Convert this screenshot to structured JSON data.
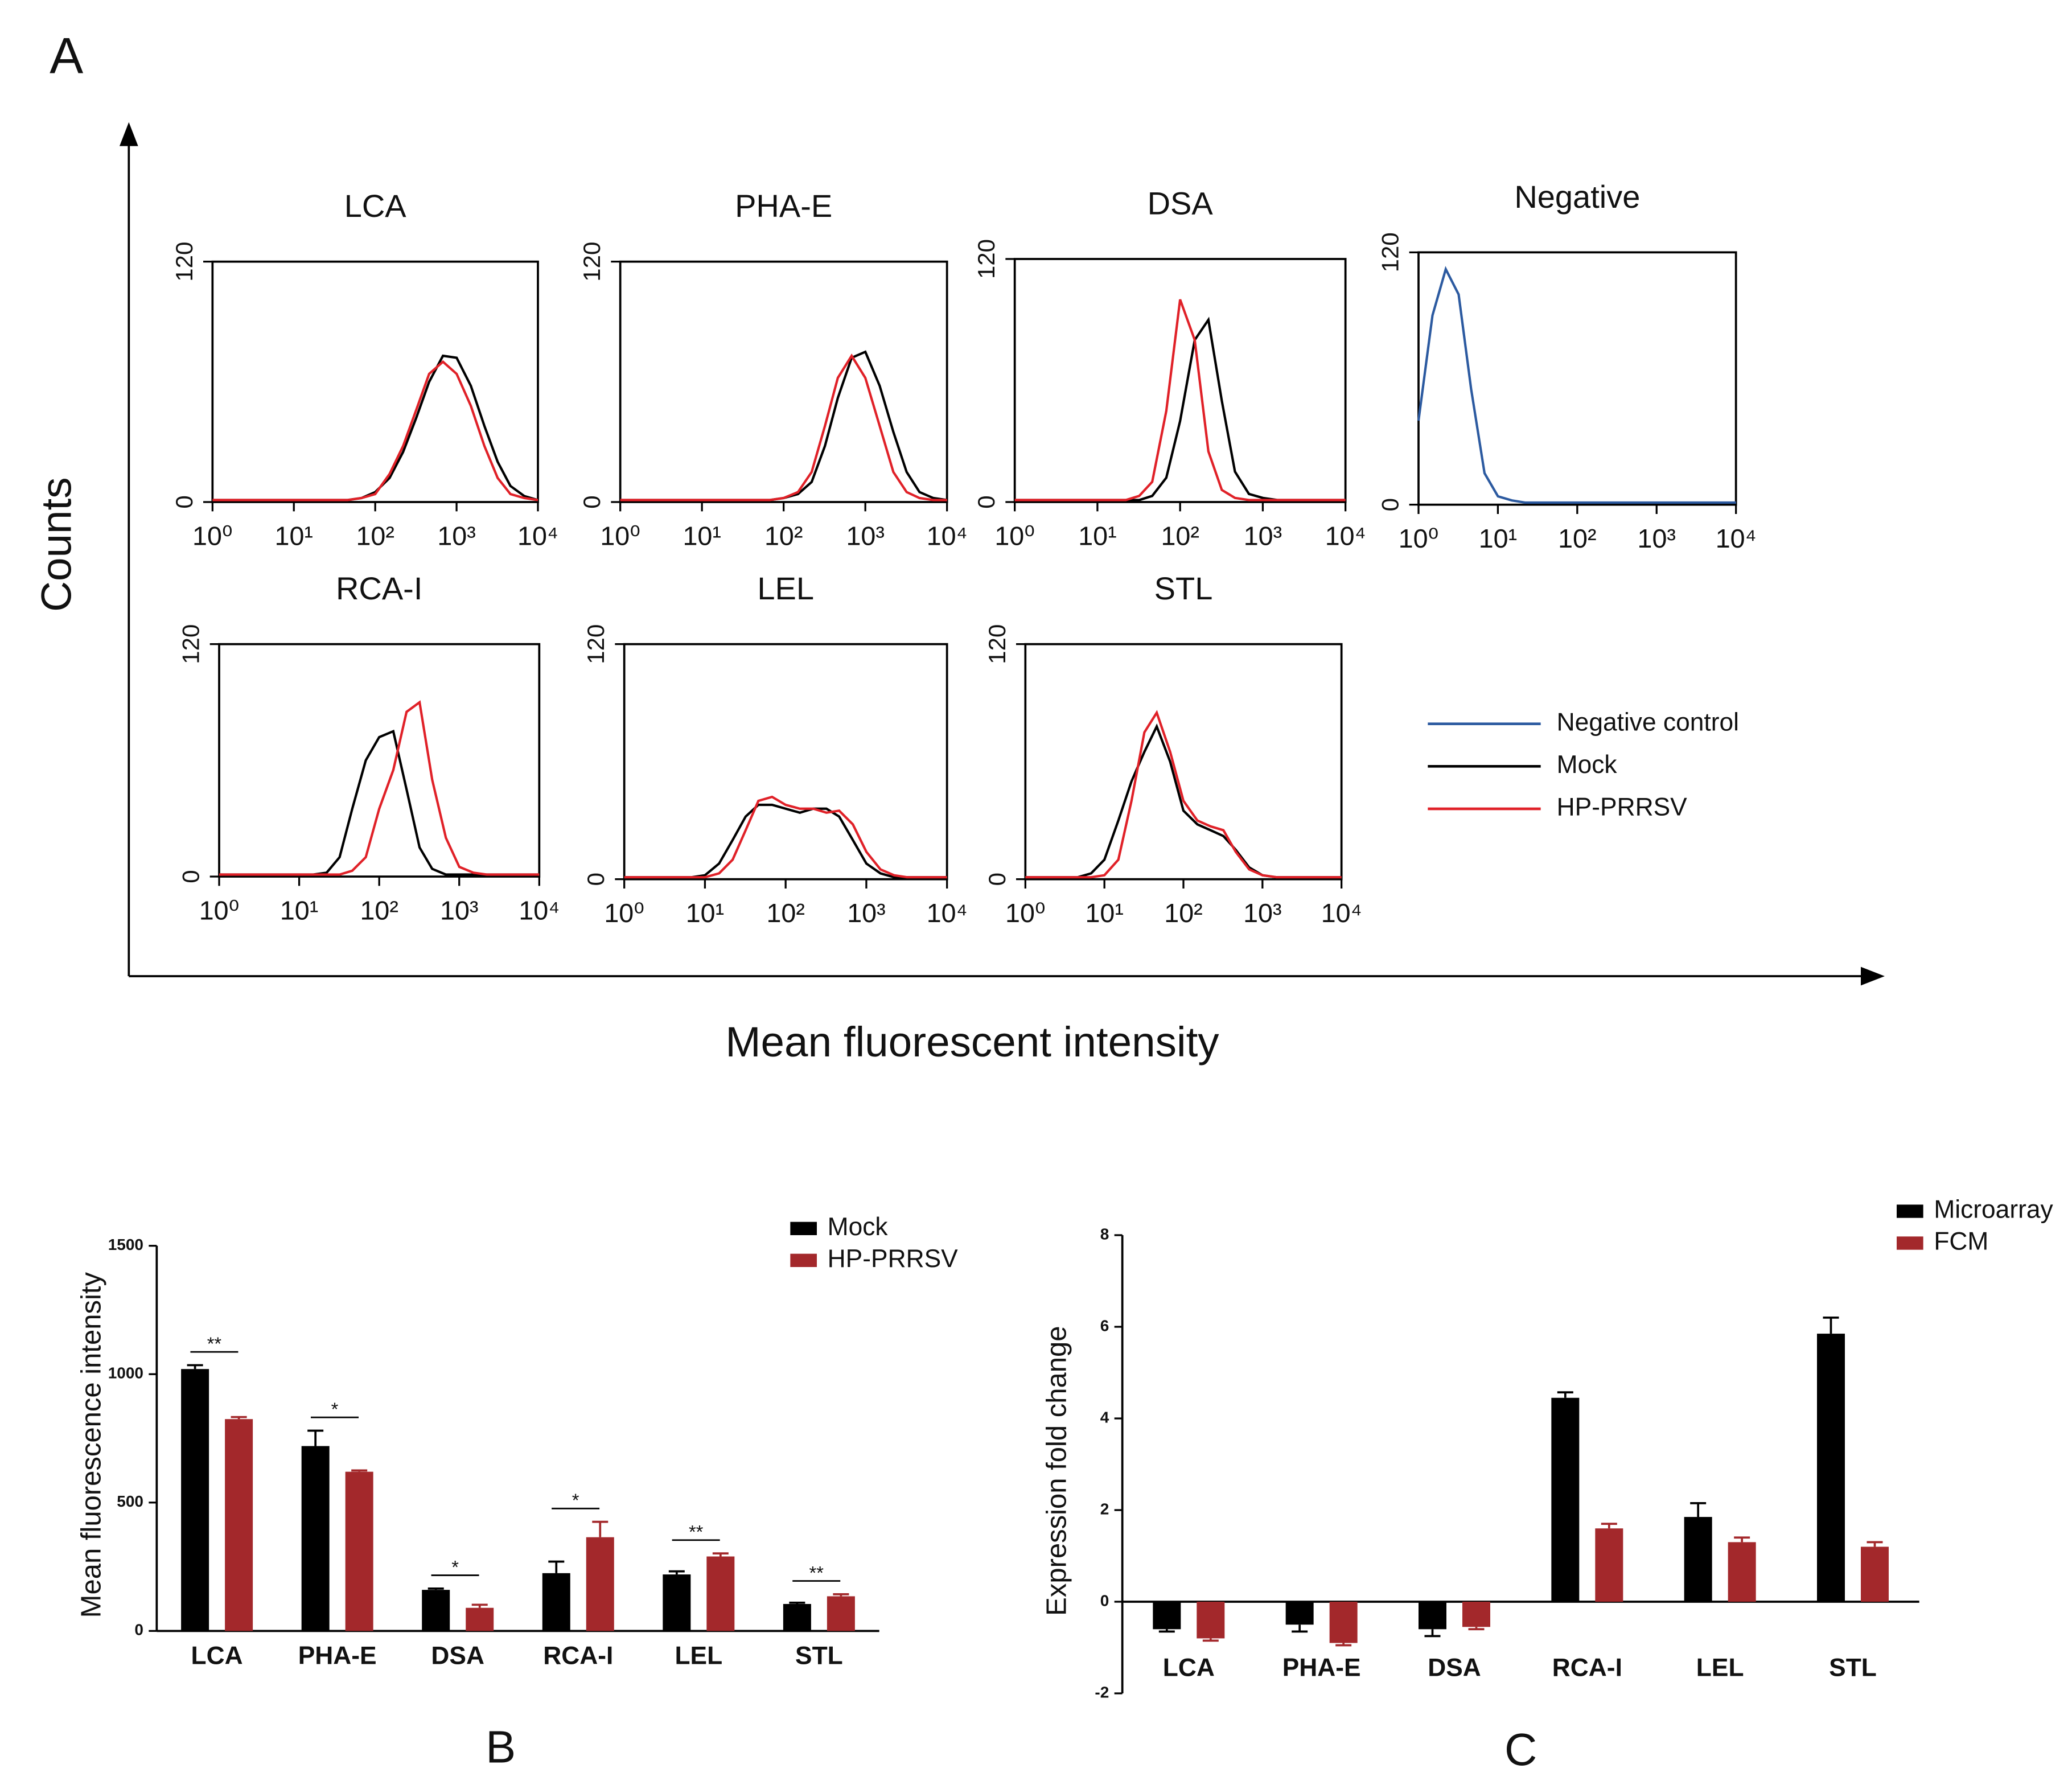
{
  "figure": {
    "panel_labels": [
      "A",
      "B",
      "C"
    ],
    "y_label": "Counts",
    "x_label": "Mean fluorescent intensity"
  },
  "chart_data": [
    {
      "type": "line",
      "title": "LCA",
      "log_x": true,
      "x": [
        1,
        1.5,
        2.2,
        3.2,
        4.6,
        6.8,
        10,
        15,
        22,
        32,
        46,
        68,
        100,
        150,
        220,
        320,
        460,
        680,
        1000,
        1500,
        2200,
        3200,
        4600,
        6800,
        10000
      ],
      "series": [
        {
          "name": "Mock",
          "color": "#000000",
          "values": [
            1,
            1,
            1,
            1,
            1,
            1,
            1,
            1,
            1,
            1,
            1,
            2,
            5,
            12,
            25,
            42,
            60,
            73,
            72,
            58,
            38,
            20,
            8,
            3,
            1
          ]
        },
        {
          "name": "HP-PRRSV",
          "color": "#e02128",
          "values": [
            1,
            1,
            1,
            1,
            1,
            1,
            1,
            1,
            1,
            1,
            1,
            2,
            4,
            14,
            28,
            46,
            64,
            70,
            64,
            48,
            28,
            12,
            4,
            2,
            1
          ]
        }
      ],
      "xlim": [
        1,
        10000
      ],
      "xticks": [
        {
          "value": 1,
          "label": "10⁰"
        },
        {
          "value": 10,
          "label": "10¹"
        },
        {
          "value": 100,
          "label": "10²"
        },
        {
          "value": 1000,
          "label": "10³"
        },
        {
          "value": 10000,
          "label": "10⁴"
        }
      ],
      "ylim": [
        0,
        120
      ],
      "yticks": [
        0,
        120
      ]
    },
    {
      "type": "line",
      "title": "PHA-E",
      "log_x": true,
      "x": [
        1,
        1.5,
        2.2,
        3.2,
        4.6,
        6.8,
        10,
        15,
        22,
        32,
        46,
        68,
        100,
        150,
        220,
        320,
        460,
        680,
        1000,
        1500,
        2200,
        3200,
        4600,
        6800,
        10000
      ],
      "series": [
        {
          "name": "Mock",
          "color": "#000000",
          "values": [
            1,
            1,
            1,
            1,
            1,
            1,
            1,
            1,
            1,
            1,
            1,
            1,
            2,
            4,
            10,
            28,
            52,
            72,
            75,
            58,
            35,
            15,
            5,
            2,
            1
          ]
        },
        {
          "name": "HP-PRRSV",
          "color": "#e02128",
          "values": [
            1,
            1,
            1,
            1,
            1,
            1,
            1,
            1,
            1,
            1,
            1,
            1,
            2,
            5,
            15,
            38,
            62,
            73,
            62,
            38,
            15,
            5,
            2,
            1,
            1
          ]
        }
      ],
      "xlim": [
        1,
        10000
      ],
      "xticks": [
        {
          "value": 1,
          "label": "10⁰"
        },
        {
          "value": 10,
          "label": "10¹"
        },
        {
          "value": 100,
          "label": "10²"
        },
        {
          "value": 1000,
          "label": "10³"
        },
        {
          "value": 10000,
          "label": "10⁴"
        }
      ],
      "ylim": [
        0,
        120
      ],
      "yticks": [
        0,
        120
      ]
    },
    {
      "type": "line",
      "title": "DSA",
      "log_x": true,
      "x": [
        1,
        1.5,
        2.2,
        3.2,
        4.6,
        6.8,
        10,
        15,
        22,
        32,
        46,
        68,
        100,
        150,
        220,
        320,
        460,
        680,
        1000,
        1500,
        2200,
        3200,
        4600,
        6800,
        10000
      ],
      "series": [
        {
          "name": "Mock",
          "color": "#000000",
          "values": [
            1,
            1,
            1,
            1,
            1,
            1,
            1,
            1,
            1,
            1,
            3,
            12,
            40,
            80,
            90,
            50,
            15,
            4,
            2,
            1,
            1,
            1,
            1,
            1,
            1
          ]
        },
        {
          "name": "HP-PRRSV",
          "color": "#e02128",
          "values": [
            1,
            1,
            1,
            1,
            1,
            1,
            1,
            1,
            1,
            3,
            10,
            45,
            100,
            80,
            25,
            6,
            2,
            1,
            1,
            1,
            1,
            1,
            1,
            1,
            1
          ]
        }
      ],
      "xlim": [
        1,
        10000
      ],
      "xticks": [
        {
          "value": 1,
          "label": "10⁰"
        },
        {
          "value": 10,
          "label": "10¹"
        },
        {
          "value": 100,
          "label": "10²"
        },
        {
          "value": 1000,
          "label": "10³"
        },
        {
          "value": 10000,
          "label": "10⁴"
        }
      ],
      "ylim": [
        0,
        120
      ],
      "yticks": [
        0,
        120
      ]
    },
    {
      "type": "line",
      "title": "Negative",
      "log_x": true,
      "x": [
        1,
        1.5,
        2.2,
        3.2,
        4.6,
        6.8,
        10,
        15,
        22,
        32,
        46,
        68,
        100,
        150,
        220,
        320,
        460,
        680,
        1000,
        1500,
        2200,
        3200,
        4600,
        6800,
        10000
      ],
      "series": [
        {
          "name": "Negative control",
          "color": "#2c5aa0",
          "values": [
            40,
            90,
            112,
            100,
            55,
            15,
            4,
            2,
            1,
            1,
            1,
            1,
            1,
            1,
            1,
            1,
            1,
            1,
            1,
            1,
            1,
            1,
            1,
            1,
            1
          ]
        }
      ],
      "xlim": [
        1,
        10000
      ],
      "xticks": [
        {
          "value": 1,
          "label": "10⁰"
        },
        {
          "value": 10,
          "label": "10¹"
        },
        {
          "value": 100,
          "label": "10²"
        },
        {
          "value": 1000,
          "label": "10³"
        },
        {
          "value": 10000,
          "label": "10⁴"
        }
      ],
      "ylim": [
        0,
        120
      ],
      "yticks": [
        0,
        120
      ]
    },
    {
      "type": "line",
      "title": "RCA-I",
      "log_x": true,
      "x": [
        1,
        1.5,
        2.2,
        3.2,
        4.6,
        6.8,
        10,
        15,
        22,
        32,
        46,
        68,
        100,
        150,
        220,
        320,
        460,
        680,
        1000,
        1500,
        2200,
        3200,
        4600,
        6800,
        10000
      ],
      "series": [
        {
          "name": "Mock",
          "color": "#000000",
          "values": [
            1,
            1,
            1,
            1,
            1,
            1,
            1,
            1,
            2,
            10,
            35,
            60,
            72,
            75,
            45,
            15,
            4,
            1,
            1,
            1,
            1,
            1,
            1,
            1,
            1
          ]
        },
        {
          "name": "HP-PRRSV",
          "color": "#e02128",
          "values": [
            1,
            1,
            1,
            1,
            1,
            1,
            1,
            1,
            1,
            1,
            3,
            10,
            35,
            55,
            85,
            90,
            50,
            20,
            5,
            2,
            1,
            1,
            1,
            1,
            1
          ]
        }
      ],
      "xlim": [
        1,
        10000
      ],
      "xticks": [
        {
          "value": 1,
          "label": "10⁰"
        },
        {
          "value": 10,
          "label": "10¹"
        },
        {
          "value": 100,
          "label": "10²"
        },
        {
          "value": 1000,
          "label": "10³"
        },
        {
          "value": 10000,
          "label": "10⁴"
        }
      ],
      "ylim": [
        0,
        120
      ],
      "yticks": [
        0,
        120
      ]
    },
    {
      "type": "line",
      "title": "LEL",
      "log_x": true,
      "x": [
        1,
        1.5,
        2.2,
        3.2,
        4.6,
        6.8,
        10,
        15,
        22,
        32,
        46,
        68,
        100,
        150,
        220,
        320,
        460,
        680,
        1000,
        1500,
        2200,
        3200,
        4600,
        6800,
        10000
      ],
      "series": [
        {
          "name": "Mock",
          "color": "#000000",
          "values": [
            1,
            1,
            1,
            1,
            1,
            1,
            2,
            8,
            20,
            32,
            38,
            38,
            36,
            34,
            36,
            36,
            32,
            20,
            8,
            3,
            1,
            1,
            1,
            1,
            1
          ]
        },
        {
          "name": "HP-PRRSV",
          "color": "#e02128",
          "values": [
            1,
            1,
            1,
            1,
            1,
            1,
            1,
            3,
            10,
            25,
            40,
            42,
            38,
            36,
            36,
            34,
            35,
            28,
            14,
            5,
            2,
            1,
            1,
            1,
            1
          ]
        }
      ],
      "xlim": [
        1,
        10000
      ],
      "xticks": [
        {
          "value": 1,
          "label": "10⁰"
        },
        {
          "value": 10,
          "label": "10¹"
        },
        {
          "value": 100,
          "label": "10²"
        },
        {
          "value": 1000,
          "label": "10³"
        },
        {
          "value": 10000,
          "label": "10⁴"
        }
      ],
      "ylim": [
        0,
        120
      ],
      "yticks": [
        0,
        120
      ]
    },
    {
      "type": "line",
      "title": "STL",
      "log_x": true,
      "x": [
        1,
        1.5,
        2.2,
        3.2,
        4.6,
        6.8,
        10,
        15,
        22,
        32,
        46,
        68,
        100,
        150,
        220,
        320,
        460,
        680,
        1000,
        1500,
        2200,
        3200,
        4600,
        6800,
        10000
      ],
      "series": [
        {
          "name": "Mock",
          "color": "#000000",
          "values": [
            1,
            1,
            1,
            1,
            1,
            3,
            10,
            30,
            50,
            65,
            78,
            60,
            35,
            28,
            25,
            22,
            15,
            6,
            2,
            1,
            1,
            1,
            1,
            1,
            1
          ]
        },
        {
          "name": "HP-PRRSV",
          "color": "#e02128",
          "values": [
            1,
            1,
            1,
            1,
            1,
            1,
            2,
            10,
            40,
            75,
            85,
            65,
            40,
            30,
            27,
            25,
            14,
            5,
            2,
            1,
            1,
            1,
            1,
            1,
            1
          ]
        }
      ],
      "xlim": [
        1,
        10000
      ],
      "xticks": [
        {
          "value": 1,
          "label": "10⁰"
        },
        {
          "value": 10,
          "label": "10¹"
        },
        {
          "value": 100,
          "label": "10²"
        },
        {
          "value": 1000,
          "label": "10³"
        },
        {
          "value": 10000,
          "label": "10⁴"
        }
      ],
      "ylim": [
        0,
        120
      ],
      "yticks": [
        0,
        120
      ]
    },
    {
      "type": "bar",
      "y_label": "Mean fluorescence intensity",
      "legend": "top right",
      "categories": [
        "LCA",
        "PHA-E",
        "DSA",
        "RCA-I",
        "LEL",
        "STL"
      ],
      "series": [
        {
          "name": "Mock",
          "color": "#000000",
          "values": [
            1020,
            720,
            160,
            225,
            220,
            105
          ],
          "errors": [
            15,
            60,
            5,
            45,
            12,
            5
          ]
        },
        {
          "name": "HP-PRRSV",
          "color": "#a3282b",
          "values": [
            825,
            620,
            90,
            365,
            290,
            135
          ],
          "errors": [
            8,
            5,
            12,
            60,
            12,
            8
          ]
        }
      ],
      "annotations": [
        "**",
        "*",
        "*",
        "*",
        "**",
        "**"
      ],
      "ylim": [
        0,
        1500
      ],
      "yticks": [
        0,
        500,
        1000,
        1500
      ]
    },
    {
      "type": "bar",
      "y_label": "Expression fold change",
      "legend": "top right",
      "categories": [
        "LCA",
        "PHA-E",
        "DSA",
        "RCA-I",
        "LEL",
        "STL"
      ],
      "series": [
        {
          "name": "Microarray",
          "color": "#000000",
          "values": [
            -0.6,
            -0.5,
            -0.6,
            4.45,
            1.85,
            5.85
          ],
          "errors": [
            0.05,
            0.15,
            0.15,
            0.12,
            0.3,
            0.35
          ]
        },
        {
          "name": "FCM",
          "color": "#a3282b",
          "values": [
            -0.8,
            -0.9,
            -0.55,
            1.6,
            1.3,
            1.2
          ],
          "errors": [
            0.05,
            0.05,
            0.05,
            0.1,
            0.1,
            0.1
          ]
        }
      ],
      "ylim": [
        -2,
        8
      ],
      "yticks": [
        -2,
        0,
        2,
        4,
        6,
        8
      ]
    }
  ]
}
